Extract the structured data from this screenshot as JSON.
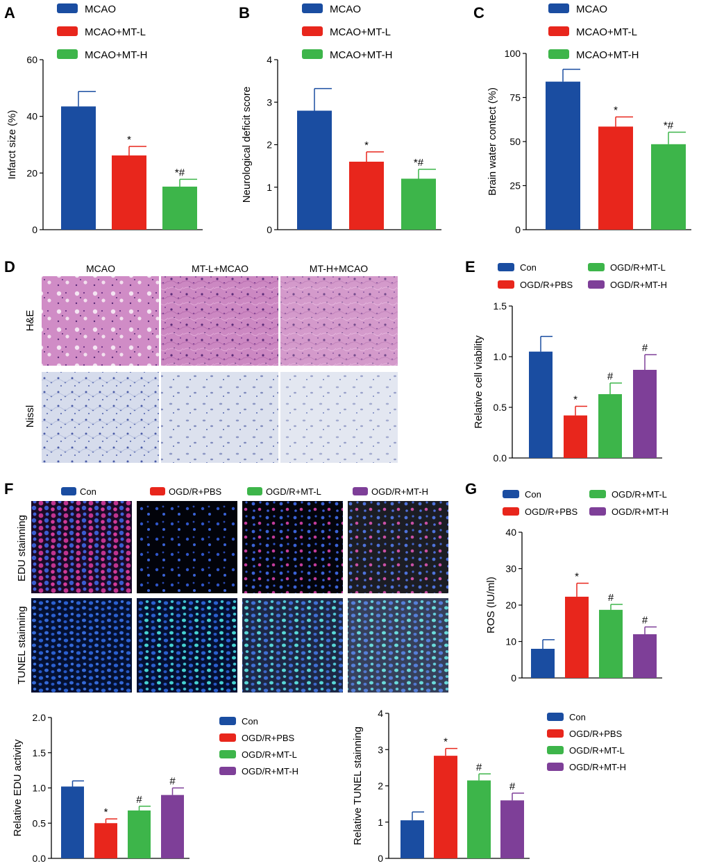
{
  "colors": {
    "blue": "#1a4da1",
    "red": "#e8261c",
    "green": "#3db54a",
    "purple": "#7e3f98"
  },
  "panels": {
    "A": "A",
    "B": "B",
    "C": "C",
    "D": "D",
    "E": "E",
    "F": "F",
    "G": "G"
  },
  "histology": {
    "columns": [
      "MCAO",
      "MT-L+MCAO",
      "MT-H+MCAO"
    ],
    "rows": [
      "H&E",
      "Nissl"
    ]
  },
  "fluorescence": {
    "columns": [
      "Con",
      "OGD/R+PBS",
      "OGD/R+MT-L",
      "OGD/R+MT-H"
    ],
    "rows": [
      "EDU stainning",
      "TUNEL stainning"
    ]
  },
  "chart_data": [
    {
      "id": "A",
      "type": "bar",
      "categories": [
        "MCAO",
        "MCAO+MT-L",
        "MCAO+MT-H"
      ],
      "values": [
        43.5,
        26.2,
        15.2
      ],
      "errors": [
        5.3,
        3.2,
        2.6
      ],
      "labels": [
        "",
        "*",
        "*#"
      ],
      "colors": [
        "blue",
        "red",
        "green"
      ],
      "ylabel": "Infarct size (%)",
      "ylim": [
        0,
        60
      ],
      "ticks": [
        0,
        20,
        40,
        60
      ],
      "legend": [
        "MCAO",
        "MCAO+MT-L",
        "MCAO+MT-H"
      ]
    },
    {
      "id": "B",
      "type": "bar",
      "categories": [
        "MCAO",
        "MCAO+MT-L",
        "MCAO+MT-H"
      ],
      "values": [
        2.8,
        1.6,
        1.2
      ],
      "errors": [
        0.52,
        0.23,
        0.22
      ],
      "labels": [
        "",
        "*",
        "*#"
      ],
      "colors": [
        "blue",
        "red",
        "green"
      ],
      "ylabel": "Neurological deficit score",
      "ylim": [
        0,
        4
      ],
      "ticks": [
        0,
        1,
        2,
        3,
        4
      ],
      "legend": [
        "MCAO",
        "MCAO+MT-L",
        "MCAO+MT-H"
      ]
    },
    {
      "id": "C",
      "type": "bar",
      "categories": [
        "MCAO",
        "MCAO+MT-L",
        "MCAO+MT-H"
      ],
      "values": [
        84,
        58.5,
        48.5
      ],
      "errors": [
        7,
        5.5,
        6.8
      ],
      "labels": [
        "",
        "*",
        "*#"
      ],
      "colors": [
        "blue",
        "red",
        "green"
      ],
      "ylabel": "Brain water contect (%)",
      "ylim": [
        0,
        100
      ],
      "ticks": [
        0,
        25,
        50,
        75,
        100
      ],
      "legend": [
        "MCAO",
        "MCAO+MT-L",
        "MCAO+MT-H"
      ]
    },
    {
      "id": "E",
      "type": "bar",
      "categories": [
        "Con",
        "OGD/R+PBS",
        "OGD/R+MT-L",
        "OGD/R+MT-H"
      ],
      "values": [
        1.05,
        0.42,
        0.63,
        0.87
      ],
      "errors": [
        0.15,
        0.09,
        0.11,
        0.15
      ],
      "labels": [
        "",
        "*",
        "#",
        "#"
      ],
      "colors": [
        "blue",
        "red",
        "green",
        "purple"
      ],
      "ylabel": "Relative cell viability",
      "ylim": [
        0,
        1.5
      ],
      "ticks": [
        "0.0",
        "0.5",
        "1.0",
        "1.5"
      ],
      "legend": [
        "Con",
        "OGD/R+MT-L",
        "OGD/R+PBS",
        "OGD/R+MT-H"
      ],
      "legend_colors": [
        "blue",
        "green",
        "red",
        "purple"
      ]
    },
    {
      "id": "G",
      "type": "bar",
      "categories": [
        "Con",
        "OGD/R+PBS",
        "OGD/R+MT-L",
        "OGD/R+MT-H"
      ],
      "values": [
        8,
        22.3,
        18.7,
        12
      ],
      "errors": [
        2.5,
        3.7,
        1.5,
        2.0
      ],
      "labels": [
        "",
        "*",
        "#",
        "#"
      ],
      "colors": [
        "blue",
        "red",
        "green",
        "purple"
      ],
      "ylabel": "ROS (IU/ml)",
      "ylim": [
        0,
        40
      ],
      "ticks": [
        0,
        10,
        20,
        30,
        40
      ],
      "legend": [
        "Con",
        "OGD/R+MT-L",
        "OGD/R+PBS",
        "OGD/R+MT-H"
      ],
      "legend_colors": [
        "blue",
        "green",
        "red",
        "purple"
      ]
    },
    {
      "id": "F1",
      "type": "bar",
      "categories": [
        "Con",
        "OGD/R+PBS",
        "OGD/R+MT-L",
        "OGD/R+MT-H"
      ],
      "values": [
        1.02,
        0.5,
        0.68,
        0.9
      ],
      "errors": [
        0.08,
        0.06,
        0.06,
        0.1
      ],
      "labels": [
        "",
        "*",
        "#",
        "#"
      ],
      "colors": [
        "blue",
        "red",
        "green",
        "purple"
      ],
      "ylabel": "Relative EDU activity",
      "ylim": [
        0,
        2.0
      ],
      "ticks": [
        "0.0",
        "0.5",
        "1.0",
        "1.5",
        "2.0"
      ],
      "legend": [
        "Con",
        "OGD/R+PBS",
        "OGD/R+MT-L",
        "OGD/R+MT-H"
      ],
      "legend_colors": [
        "blue",
        "red",
        "green",
        "purple"
      ]
    },
    {
      "id": "F2",
      "type": "bar",
      "categories": [
        "Con",
        "OGD/R+PBS",
        "OGD/R+MT-L",
        "OGD/R+MT-H"
      ],
      "values": [
        1.05,
        2.83,
        2.15,
        1.6
      ],
      "errors": [
        0.23,
        0.2,
        0.18,
        0.2
      ],
      "labels": [
        "",
        "*",
        "#",
        "#"
      ],
      "colors": [
        "blue",
        "red",
        "green",
        "purple"
      ],
      "ylabel": "Relative TUNEL stainning",
      "ylim": [
        0,
        4
      ],
      "ticks": [
        0,
        1,
        2,
        3,
        4
      ],
      "legend": [
        "Con",
        "OGD/R+PBS",
        "OGD/R+MT-L",
        "OGD/R+MT-H"
      ],
      "legend_colors": [
        "blue",
        "red",
        "green",
        "purple"
      ]
    }
  ]
}
